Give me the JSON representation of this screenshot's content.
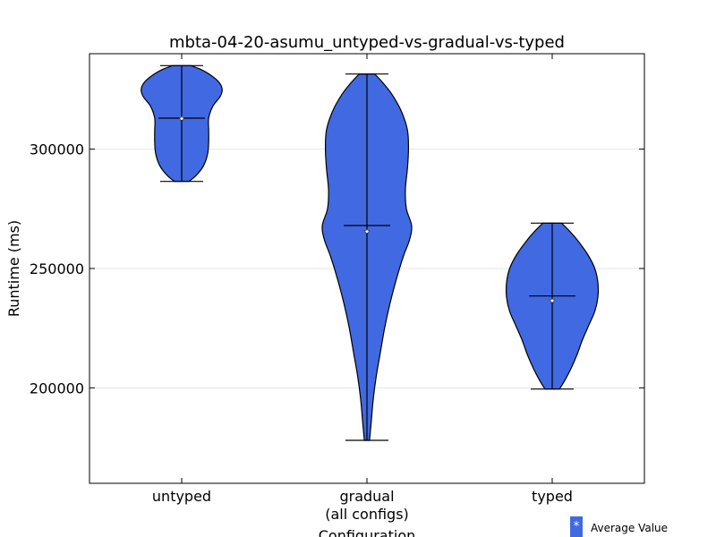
{
  "chart_data": {
    "type": "violin",
    "title": "mbta-04-20-asumu_untyped-vs-gradual-vs-typed",
    "xlabel": "Configuration",
    "ylabel": "Runtime (ms)",
    "ylim": [
      160000,
      340000
    ],
    "yticks": [
      200000,
      250000,
      300000
    ],
    "ytick_labels": [
      "200000",
      "250000",
      "300000"
    ],
    "grid": "horizontal",
    "legend": {
      "placement": "bottom-right",
      "marker": "*",
      "label": "Average Value"
    },
    "categories": [
      {
        "label": "untyped",
        "sublabel": ""
      },
      {
        "label": "gradual",
        "sublabel": "(all configs)"
      },
      {
        "label": "typed",
        "sublabel": ""
      }
    ],
    "series": [
      {
        "category": "untyped",
        "min": 286500,
        "max": 335000,
        "median": 313000,
        "mean": 312800,
        "density": [
          [
            286500,
            0.14
          ],
          [
            289000,
            0.28
          ],
          [
            293000,
            0.42
          ],
          [
            298000,
            0.5
          ],
          [
            303000,
            0.52
          ],
          [
            308000,
            0.52
          ],
          [
            313000,
            0.52
          ],
          [
            318000,
            0.6
          ],
          [
            322000,
            0.74
          ],
          [
            325000,
            0.78
          ],
          [
            328000,
            0.72
          ],
          [
            331000,
            0.56
          ],
          [
            333500,
            0.36
          ],
          [
            335000,
            0.18
          ]
        ]
      },
      {
        "category": "gradual",
        "min": 178000,
        "max": 331500,
        "median": 268000,
        "mean": 265500,
        "density": [
          [
            178000,
            0.05
          ],
          [
            185000,
            0.08
          ],
          [
            195000,
            0.12
          ],
          [
            205000,
            0.18
          ],
          [
            215000,
            0.26
          ],
          [
            225000,
            0.34
          ],
          [
            235000,
            0.44
          ],
          [
            245000,
            0.56
          ],
          [
            255000,
            0.7
          ],
          [
            262000,
            0.82
          ],
          [
            268000,
            0.86
          ],
          [
            275000,
            0.76
          ],
          [
            283000,
            0.74
          ],
          [
            292000,
            0.78
          ],
          [
            300000,
            0.8
          ],
          [
            308000,
            0.78
          ],
          [
            316000,
            0.66
          ],
          [
            323000,
            0.48
          ],
          [
            328000,
            0.3
          ],
          [
            331500,
            0.15
          ]
        ]
      },
      {
        "category": "typed",
        "min": 199500,
        "max": 269000,
        "median": 238500,
        "mean": 236500,
        "density": [
          [
            199500,
            0.14
          ],
          [
            203000,
            0.24
          ],
          [
            208000,
            0.36
          ],
          [
            214000,
            0.48
          ],
          [
            220000,
            0.58
          ],
          [
            226000,
            0.7
          ],
          [
            232000,
            0.82
          ],
          [
            238000,
            0.88
          ],
          [
            244000,
            0.88
          ],
          [
            250000,
            0.82
          ],
          [
            256000,
            0.68
          ],
          [
            262000,
            0.48
          ],
          [
            266000,
            0.32
          ],
          [
            269000,
            0.18
          ]
        ]
      }
    ]
  }
}
